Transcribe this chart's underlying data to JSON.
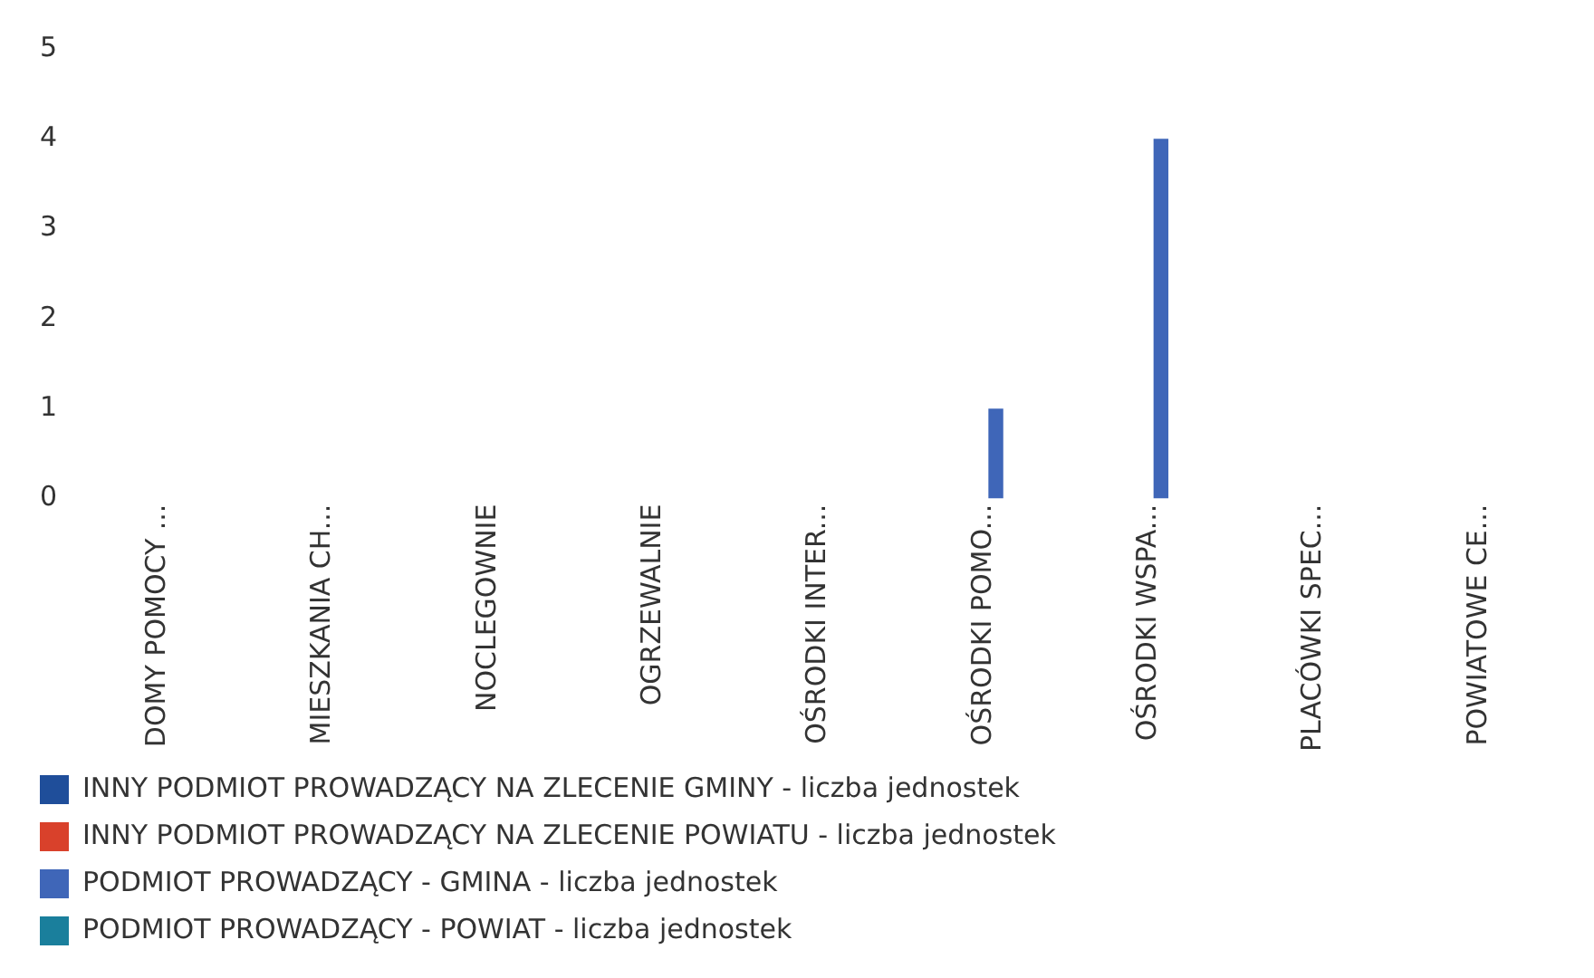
{
  "chart_data": {
    "type": "bar",
    "categories": [
      "DOMY POMOCY ...",
      "MIESZKANIA CH...",
      "NOCLEGOWNIE",
      "OGRZEWALNIE",
      "OŚRODKI INTER...",
      "OŚRODKI POMO...",
      "OŚRODKI WSPA...",
      "PLACÓWKI SPEC...",
      "POWIATOWE CE..."
    ],
    "series": [
      {
        "name": "INNY PODMIOT PROWADZĄCY NA ZLECENIE GMINY - liczba jednostek",
        "color": "#1f4e9a",
        "values": [
          0,
          0,
          0,
          0,
          0,
          0,
          0,
          0,
          0
        ]
      },
      {
        "name": "INNY PODMIOT PROWADZĄCY NA ZLECENIE POWIATU - liczba jednostek",
        "color": "#d9412b",
        "values": [
          0,
          0,
          0,
          0,
          0,
          0,
          0,
          0,
          0
        ]
      },
      {
        "name": "PODMIOT PROWADZĄCY - GMINA - liczba jednostek",
        "color": "#3f66b8",
        "values": [
          0,
          0,
          0,
          0,
          0,
          1,
          4,
          0,
          0
        ]
      },
      {
        "name": "PODMIOT PROWADZĄCY - POWIAT - liczba jednostek",
        "color": "#1a7f9c",
        "values": [
          0,
          0,
          0,
          0,
          0,
          0,
          0,
          0,
          0
        ]
      }
    ],
    "ylim": [
      0,
      5
    ],
    "yticks": [
      0,
      1,
      2,
      3,
      4,
      5
    ],
    "grid": false,
    "legend": "bottom"
  }
}
